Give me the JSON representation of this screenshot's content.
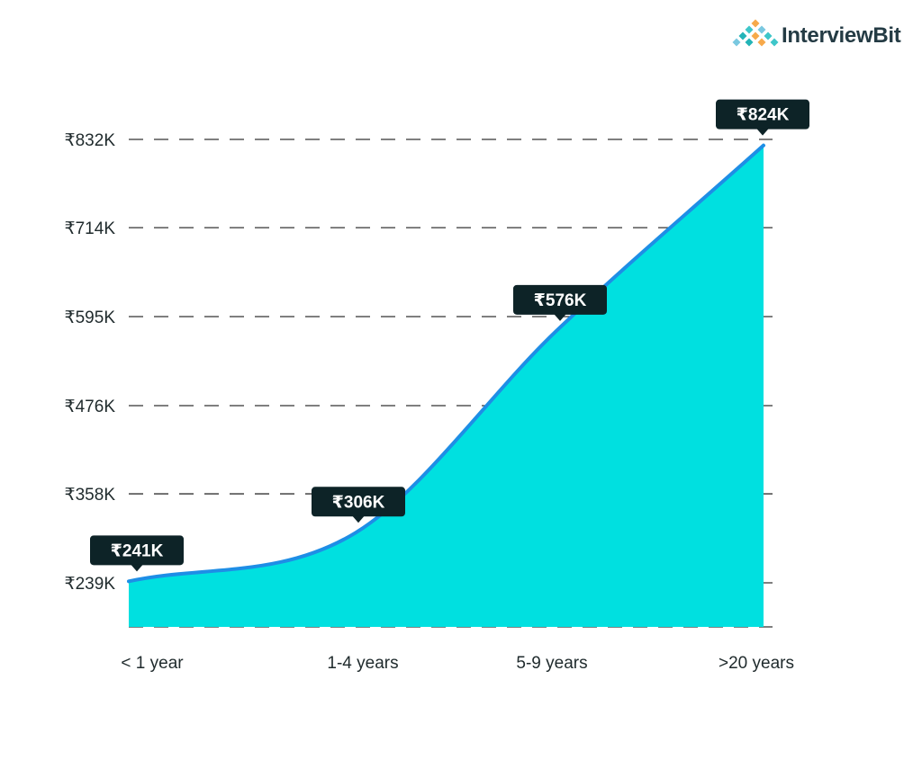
{
  "brand": {
    "name": "InterviewBit",
    "logo_colors": [
      "#f7a94a",
      "#3ec6c9",
      "#7ac8e0",
      "#23b4b7"
    ]
  },
  "colors": {
    "area": "#00e0e0",
    "line": "#1e8ee6",
    "label_bg": "#0d2327",
    "grid": "#333333"
  },
  "chart_data": {
    "type": "area",
    "title": "",
    "xlabel": "",
    "ylabel": "",
    "categories": [
      "< 1 year",
      "1-4 years",
      "5-9 years",
      ">20 years"
    ],
    "values": [
      241,
      306,
      576,
      824
    ],
    "data_labels": [
      "₹241K",
      "₹306K",
      "₹576K",
      "₹824K"
    ],
    "y_ticks": [
      832,
      714,
      595,
      476,
      358,
      239
    ],
    "y_tick_labels": [
      "₹832K",
      "₹714K",
      "₹595K",
      "₹476K",
      "₹358K",
      "₹239K"
    ],
    "ylim": [
      180,
      832
    ],
    "grid": true,
    "legend": "none"
  }
}
